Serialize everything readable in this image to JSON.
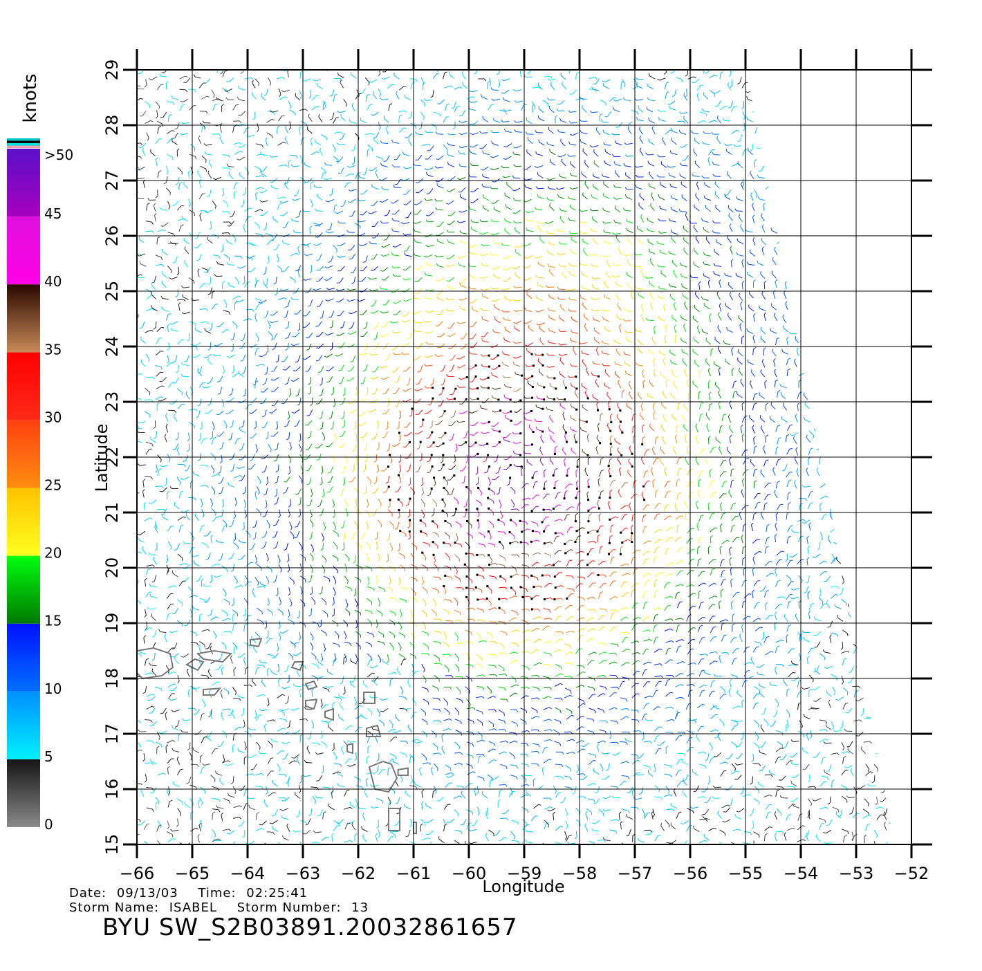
{
  "colorbar": {
    "unit_label": "knots",
    "tick_labels": [
      "0",
      "5",
      "10",
      "15",
      "20",
      "25",
      "30",
      "35",
      "40",
      "45",
      ">50"
    ],
    "segments": [
      {
        "from": 0,
        "to": 5,
        "top_color": "#151515",
        "bottom_color": "#8a8a8a"
      },
      {
        "from": 5,
        "to": 10,
        "top_color": "#0090ff",
        "bottom_color": "#00f0ff"
      },
      {
        "from": 10,
        "to": 15,
        "top_color": "#0010ff",
        "bottom_color": "#0070ff"
      },
      {
        "from": 15,
        "to": 20,
        "top_color": "#00ff10",
        "bottom_color": "#007800"
      },
      {
        "from": 20,
        "to": 25,
        "top_color": "#ffc200",
        "bottom_color": "#ffff20"
      },
      {
        "from": 25,
        "to": 30,
        "top_color": "#ff4010",
        "bottom_color": "#ff8e10"
      },
      {
        "from": 30,
        "to": 35,
        "top_color": "#ff0000",
        "bottom_color": "#ff2a18"
      },
      {
        "from": 35,
        "to": 40,
        "top_color": "#2a0800",
        "bottom_color": "#c88a58"
      },
      {
        "from": 40,
        "to": 45,
        "top_color": "#e010e0",
        "bottom_color": "#ff00e6"
      },
      {
        "from": 45,
        "to": 50,
        "top_color": "#5a10c8",
        "bottom_color": "#a800c0"
      }
    ],
    "top_stripe_colors": [
      "#00c8c8",
      "#000000",
      "#00e0e0",
      "#f0a0b0"
    ]
  },
  "map": {
    "x_axis": {
      "label": "Longitude",
      "ticks": [
        -66,
        -65,
        -64,
        -63,
        -62,
        -61,
        -60,
        -59,
        -58,
        -57,
        -56,
        -55,
        -54,
        -53,
        -52
      ]
    },
    "y_axis": {
      "label": "Latitude",
      "ticks": [
        15,
        16,
        17,
        18,
        19,
        20,
        21,
        22,
        23,
        24,
        25,
        26,
        27,
        28,
        29
      ]
    },
    "lon_range": [
      -66,
      -52
    ],
    "lat_range": [
      15,
      29
    ],
    "tick_minus_sign": "−",
    "swath_corners_lonlat": [
      [
        -66,
        29
      ],
      [
        -54.99,
        29
      ],
      [
        -52.3,
        15
      ],
      [
        -66,
        15
      ]
    ],
    "storm_center_lonlat": [
      -59.1,
      21.6
    ],
    "islands_lonlat": [
      [
        [
          -66,
          18.5
        ],
        [
          -65.7,
          18.55
        ],
        [
          -65.4,
          18.45
        ],
        [
          -65.35,
          18.2
        ],
        [
          -65.55,
          18.05
        ],
        [
          -65.9,
          18.0
        ],
        [
          -66,
          18.1
        ]
      ],
      [
        [
          -65.1,
          18.25
        ],
        [
          -64.95,
          18.35
        ],
        [
          -64.8,
          18.3
        ],
        [
          -64.9,
          18.15
        ]
      ],
      [
        [
          -64.9,
          18.45
        ],
        [
          -64.6,
          18.5
        ],
        [
          -64.3,
          18.45
        ],
        [
          -64.45,
          18.3
        ],
        [
          -64.8,
          18.35
        ]
      ],
      [
        [
          -63.95,
          18.7
        ],
        [
          -63.75,
          18.72
        ],
        [
          -63.8,
          18.58
        ],
        [
          -63.95,
          18.6
        ]
      ],
      [
        [
          -64.8,
          17.8
        ],
        [
          -64.5,
          17.82
        ],
        [
          -64.6,
          17.7
        ],
        [
          -64.8,
          17.7
        ]
      ],
      [
        [
          -63.15,
          18.3
        ],
        [
          -63.0,
          18.3
        ],
        [
          -63.05,
          18.15
        ],
        [
          -63.2,
          18.2
        ]
      ],
      [
        [
          -62.95,
          17.9
        ],
        [
          -62.8,
          17.95
        ],
        [
          -62.75,
          17.85
        ],
        [
          -62.9,
          17.8
        ]
      ],
      [
        [
          -62.95,
          17.6
        ],
        [
          -62.75,
          17.62
        ],
        [
          -62.8,
          17.45
        ],
        [
          -62.95,
          17.5
        ]
      ],
      [
        [
          -62.6,
          17.4
        ],
        [
          -62.45,
          17.45
        ],
        [
          -62.45,
          17.25
        ],
        [
          -62.6,
          17.3
        ]
      ],
      [
        [
          -61.9,
          17.75
        ],
        [
          -61.7,
          17.75
        ],
        [
          -61.7,
          17.55
        ],
        [
          -61.9,
          17.55
        ]
      ],
      [
        [
          -61.85,
          17.1
        ],
        [
          -61.65,
          17.15
        ],
        [
          -61.6,
          16.95
        ],
        [
          -61.85,
          16.95
        ]
      ],
      [
        [
          -62.2,
          16.8
        ],
        [
          -62.1,
          16.82
        ],
        [
          -62.1,
          16.65
        ],
        [
          -62.2,
          16.68
        ]
      ],
      [
        [
          -61.8,
          16.4
        ],
        [
          -61.55,
          16.5
        ],
        [
          -61.4,
          16.45
        ],
        [
          -61.3,
          16.2
        ],
        [
          -61.45,
          15.95
        ],
        [
          -61.7,
          16.0
        ],
        [
          -61.75,
          16.2
        ]
      ],
      [
        [
          -61.28,
          16.35
        ],
        [
          -61.1,
          16.38
        ],
        [
          -61.1,
          16.25
        ],
        [
          -61.28,
          16.25
        ]
      ],
      [
        [
          -61.45,
          15.65
        ],
        [
          -61.25,
          15.65
        ],
        [
          -61.25,
          15.25
        ],
        [
          -61.45,
          15.25
        ]
      ],
      [
        [
          -61.0,
          15.4
        ],
        [
          -60.95,
          15.4
        ],
        [
          -60.95,
          15.2
        ],
        [
          -61.0,
          15.2
        ]
      ]
    ]
  },
  "info": {
    "date_label": "Date:",
    "date_value": "09/13/03",
    "time_label": "Time:",
    "time_value": "02:25:41",
    "storm_name_label": "Storm Name:",
    "storm_name_value": "ISABEL",
    "storm_number_label": "Storm Number:",
    "storm_number_value": "13",
    "product_id": "BYU SW_S2B03891.20032861657"
  }
}
